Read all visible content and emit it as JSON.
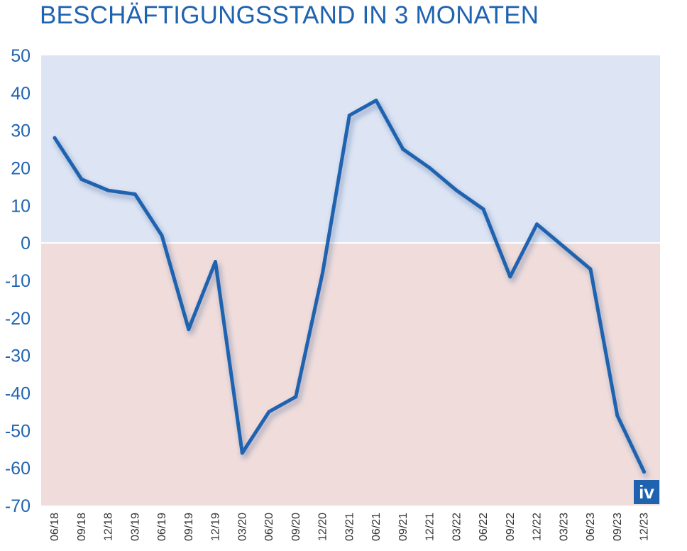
{
  "chart_data": {
    "type": "line",
    "title": "BESCHÄFTIGUNGSSTAND IN 3 MONATEN",
    "xlabel": "",
    "ylabel": "",
    "ylim": [
      -70,
      50
    ],
    "yticks": [
      50,
      40,
      30,
      20,
      10,
      0,
      -10,
      -20,
      -30,
      -40,
      -50,
      -60,
      -70
    ],
    "grid": false,
    "background_bands": [
      {
        "from": 0,
        "to": 50,
        "color": "#dde5f4"
      },
      {
        "from": -70,
        "to": 0,
        "color": "#f0dddb"
      }
    ],
    "line_color": "#1f63b0",
    "categories": [
      "06/18",
      "09/18",
      "12/18",
      "03/19",
      "06/19",
      "09/19",
      "12/19",
      "03/20",
      "06/20",
      "09/20",
      "12/20",
      "03/21",
      "06/21",
      "09/21",
      "12/21",
      "03/22",
      "06/22",
      "09/22",
      "12/22",
      "03/23",
      "06/23",
      "09/23",
      "12/23"
    ],
    "series": [
      {
        "values": [
          28,
          17,
          14,
          13,
          2,
          -23,
          -5,
          -56,
          -45,
          -41,
          -8,
          34,
          38,
          25,
          20,
          14,
          9,
          -9,
          5,
          -1,
          -7,
          -46,
          -61
        ]
      }
    ]
  },
  "logo": {
    "text": "iv",
    "color": "#1f63b0"
  }
}
